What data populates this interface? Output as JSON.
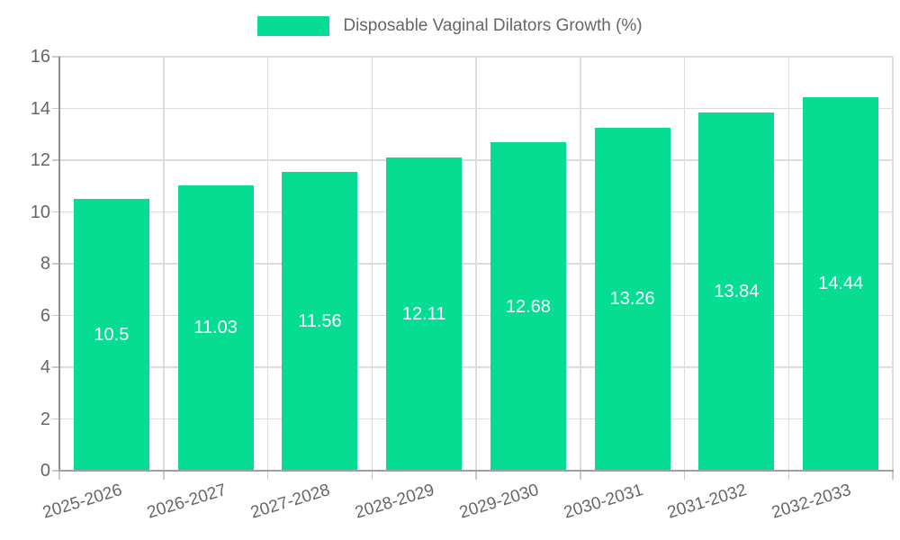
{
  "legend": {
    "label": "Disposable Vaginal Dilators Growth (%)"
  },
  "chart_data": {
    "type": "bar",
    "title": "Disposable Vaginal Dilators Growth (%)",
    "categories": [
      "2025-2026",
      "2026-2027",
      "2027-2028",
      "2028-2029",
      "2029-2030",
      "2030-2031",
      "2031-2032",
      "2032-2033"
    ],
    "values": [
      10.5,
      11.03,
      11.56,
      12.11,
      12.68,
      13.26,
      13.84,
      14.44
    ],
    "bar_labels": [
      "10.5",
      "11.03",
      "11.56",
      "12.11",
      "12.68",
      "13.26",
      "13.84",
      "14.44"
    ],
    "xlabel": "",
    "ylabel": "",
    "ylim": [
      0,
      16
    ],
    "yticks": [
      0,
      2,
      4,
      6,
      8,
      10,
      12,
      14,
      16
    ],
    "grid": true,
    "legend_position": "top-center",
    "colors": {
      "bar": "#06DC92",
      "bar_value_text": "#ffffff",
      "axis_text": "#666666",
      "grid_line": "#dcdcdc",
      "y_axis_line": "#8e8e8e",
      "x_axis_line": "#a0a0a0",
      "tick_mark": "#c9c9c9"
    }
  }
}
